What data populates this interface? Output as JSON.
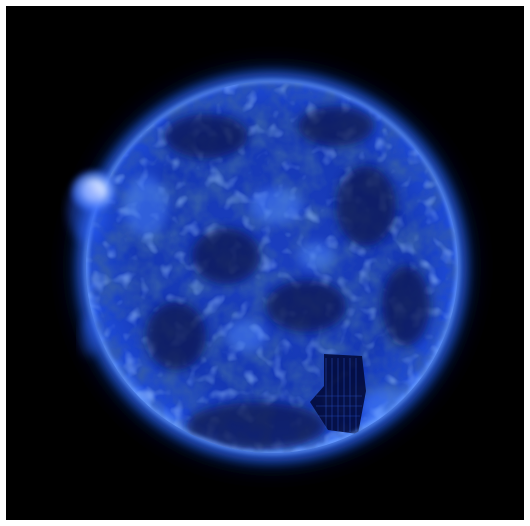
{
  "image": {
    "subject": "sun-extreme-ultraviolet",
    "colors": {
      "background": "#000000",
      "frame": "#ffffff",
      "corona_glow": "#1e5cff",
      "disk_base": "#0d2a9e",
      "disk_bright": "#3f7cff",
      "limb": "#6fa2ff",
      "dark_regions": "#050f4a",
      "active_region": "#e8f0ff"
    }
  }
}
